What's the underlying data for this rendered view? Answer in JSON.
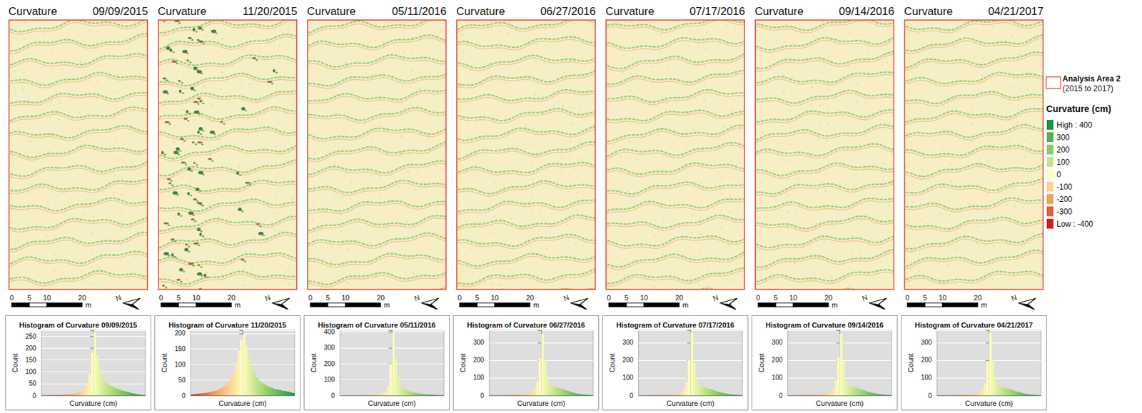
{
  "maps": [
    {
      "title": "Curvature",
      "date": "09/09/2015"
    },
    {
      "title": "Curvature",
      "date": "11/20/2015"
    },
    {
      "title": "Curvature",
      "date": "05/11/2016"
    },
    {
      "title": "Curvature",
      "date": "06/27/2016"
    },
    {
      "title": "Curvature",
      "date": "07/17/2016"
    },
    {
      "title": "Curvature",
      "date": "09/14/2016"
    },
    {
      "title": "Curvature",
      "date": "04/21/2017"
    }
  ],
  "scale_bar": {
    "ticks": [
      0,
      5,
      10,
      20
    ],
    "unit": "m",
    "north": "N"
  },
  "legend": {
    "box_label": "Analysis Area 2",
    "box_sublabel": "(2015 to 2017)"
  },
  "colorbar": {
    "title": "Curvature  (cm)",
    "range": [
      -400,
      400
    ],
    "ticks": [
      {
        "value": 400,
        "label": "High : 400"
      },
      300,
      200,
      100,
      0,
      -100,
      -200,
      -300,
      {
        "value": -400,
        "label": "Low : -400"
      }
    ],
    "colors": [
      "#1a9641",
      "#52b151",
      "#8acc62",
      "#c4e687",
      "#ffffc0",
      "#fdd28a",
      "#f99e59",
      "#e85b3a",
      "#d7191c"
    ]
  },
  "chart_data": [
    {
      "type": "histogram",
      "title": "Histogram of Curvature 09/09/2015",
      "x_label": "Curvature (cm)",
      "y_label": "Count",
      "bins": [
        -400,
        -380,
        -360,
        -340,
        -320,
        -300,
        -280,
        -260,
        -240,
        -220,
        -200,
        -180,
        -160,
        -140,
        -120,
        -100,
        -80,
        -60,
        -40,
        -20,
        0,
        20,
        40,
        60,
        80,
        100,
        120,
        140,
        160,
        180,
        200,
        220,
        240,
        260,
        280,
        300,
        320,
        340,
        360,
        380,
        400
      ],
      "values": [
        0,
        0,
        0,
        1,
        1,
        1,
        2,
        2,
        3,
        4,
        5,
        6,
        8,
        10,
        13,
        18,
        27,
        45,
        90,
        180,
        265,
        170,
        110,
        80,
        62,
        50,
        42,
        36,
        31,
        27,
        23,
        20,
        17,
        14,
        11,
        8,
        6,
        4,
        2,
        1
      ],
      "xlim": [
        -400,
        400
      ],
      "ylim": [
        0,
        275
      ],
      "yticks": [
        0,
        50,
        100,
        150,
        200,
        250
      ],
      "grid": true,
      "tick_labels": "y"
    },
    {
      "type": "histogram",
      "title": "Histogram of Curvature 11/20/2015",
      "x_label": "Curvature (cm)",
      "y_label": "Count",
      "bins": [
        -400,
        -380,
        -360,
        -340,
        -320,
        -300,
        -280,
        -260,
        -240,
        -220,
        -200,
        -180,
        -160,
        -140,
        -120,
        -100,
        -80,
        -60,
        -40,
        -20,
        0,
        20,
        40,
        60,
        80,
        100,
        120,
        140,
        160,
        180,
        200,
        220,
        240,
        260,
        280,
        300,
        320,
        340,
        360,
        380,
        400
      ],
      "values": [
        3,
        4,
        5,
        6,
        7,
        8,
        9,
        11,
        13,
        15,
        18,
        22,
        27,
        33,
        42,
        55,
        75,
        105,
        145,
        180,
        195,
        160,
        120,
        92,
        72,
        58,
        48,
        41,
        36,
        31,
        27,
        24,
        21,
        19,
        17,
        15,
        14,
        12,
        10,
        8
      ],
      "xlim": [
        -400,
        400
      ],
      "ylim": [
        0,
        210
      ],
      "yticks": [
        0,
        50,
        100,
        150,
        200
      ],
      "grid": true,
      "tick_labels": "y"
    },
    {
      "type": "histogram",
      "title": "Histogram of Curvature 05/11/2016",
      "x_label": "Curvature (cm)",
      "y_label": "Count",
      "bins": [
        -400,
        -380,
        -360,
        -340,
        -320,
        -300,
        -280,
        -260,
        -240,
        -220,
        -200,
        -180,
        -160,
        -140,
        -120,
        -100,
        -80,
        -60,
        -40,
        -20,
        0,
        20,
        40,
        60,
        80,
        100,
        120,
        140,
        160,
        180,
        200,
        220,
        240,
        260,
        280,
        300,
        320,
        340,
        360,
        380,
        400
      ],
      "values": [
        0,
        0,
        0,
        0,
        0,
        0,
        0,
        1,
        1,
        1,
        2,
        2,
        3,
        4,
        6,
        9,
        14,
        25,
        60,
        200,
        395,
        230,
        110,
        65,
        45,
        34,
        27,
        22,
        18,
        15,
        12,
        10,
        8,
        6,
        5,
        4,
        3,
        2,
        1,
        1
      ],
      "xlim": [
        -400,
        400
      ],
      "ylim": [
        0,
        410
      ],
      "yticks": [
        0,
        100,
        200,
        300,
        400
      ],
      "grid": true,
      "tick_labels": "y"
    },
    {
      "type": "histogram",
      "title": "Histogram of Curvature 06/27/2016",
      "x_label": "Curvature (cm)",
      "y_label": "Count",
      "bins": [
        -400,
        -380,
        -360,
        -340,
        -320,
        -300,
        -280,
        -260,
        -240,
        -220,
        -200,
        -180,
        -160,
        -140,
        -120,
        -100,
        -80,
        -60,
        -40,
        -20,
        0,
        20,
        40,
        60,
        80,
        100,
        120,
        140,
        160,
        180,
        200,
        220,
        240,
        260,
        280,
        300,
        320,
        340,
        360,
        380,
        400
      ],
      "values": [
        0,
        0,
        0,
        0,
        0,
        1,
        1,
        1,
        2,
        2,
        3,
        4,
        5,
        7,
        10,
        14,
        20,
        35,
        80,
        210,
        350,
        200,
        95,
        62,
        52,
        48,
        44,
        40,
        35,
        30,
        25,
        20,
        16,
        12,
        9,
        7,
        5,
        3,
        2,
        1
      ],
      "xlim": [
        -400,
        400
      ],
      "ylim": [
        0,
        370
      ],
      "yticks": [
        0,
        100,
        200,
        300
      ],
      "grid": true,
      "tick_labels": "y"
    },
    {
      "type": "histogram",
      "title": "Histogram of Curvature 07/17/2016",
      "x_label": "Curvature (cm)",
      "y_label": "Count",
      "bins": [
        -400,
        -380,
        -360,
        -340,
        -320,
        -300,
        -280,
        -260,
        -240,
        -220,
        -200,
        -180,
        -160,
        -140,
        -120,
        -100,
        -80,
        -60,
        -40,
        -20,
        0,
        20,
        40,
        60,
        80,
        100,
        120,
        140,
        160,
        180,
        200,
        220,
        240,
        260,
        280,
        300,
        320,
        340,
        360,
        380,
        400
      ],
      "values": [
        0,
        0,
        0,
        0,
        0,
        1,
        1,
        1,
        2,
        2,
        3,
        4,
        5,
        7,
        9,
        13,
        19,
        32,
        75,
        200,
        360,
        190,
        90,
        60,
        50,
        45,
        41,
        37,
        32,
        27,
        22,
        18,
        14,
        11,
        8,
        6,
        4,
        3,
        2,
        1
      ],
      "xlim": [
        -400,
        400
      ],
      "ylim": [
        0,
        370
      ],
      "yticks": [
        0,
        100,
        200,
        300
      ],
      "grid": true,
      "tick_labels": "y"
    },
    {
      "type": "histogram",
      "title": "Histogram of Curvature 09/14/2016",
      "x_label": "Curvature (cm)",
      "y_label": "Count",
      "bins": [
        -400,
        -380,
        -360,
        -340,
        -320,
        -300,
        -280,
        -260,
        -240,
        -220,
        -200,
        -180,
        -160,
        -140,
        -120,
        -100,
        -80,
        -60,
        -40,
        -20,
        0,
        20,
        40,
        60,
        80,
        100,
        120,
        140,
        160,
        180,
        200,
        220,
        240,
        260,
        280,
        300,
        320,
        340,
        360,
        380,
        400
      ],
      "values": [
        0,
        0,
        0,
        0,
        1,
        1,
        1,
        2,
        2,
        3,
        3,
        4,
        6,
        8,
        11,
        15,
        22,
        38,
        85,
        215,
        350,
        195,
        95,
        62,
        52,
        47,
        43,
        38,
        33,
        28,
        23,
        19,
        15,
        12,
        9,
        7,
        5,
        3,
        2,
        1
      ],
      "xlim": [
        -400,
        400
      ],
      "ylim": [
        0,
        370
      ],
      "yticks": [
        0,
        100,
        200,
        300
      ],
      "grid": true,
      "tick_labels": "y"
    },
    {
      "type": "histogram",
      "title": "Histogram of Curvature 04/21/2017",
      "x_label": "Curvature (cm)",
      "y_label": "Count",
      "bins": [
        -400,
        -380,
        -360,
        -340,
        -320,
        -300,
        -280,
        -260,
        -240,
        -220,
        -200,
        -180,
        -160,
        -140,
        -120,
        -100,
        -80,
        -60,
        -40,
        -20,
        0,
        20,
        40,
        60,
        80,
        100,
        120,
        140,
        160,
        180,
        200,
        220,
        240,
        260,
        280,
        300,
        320,
        340,
        360,
        380,
        400
      ],
      "values": [
        0,
        0,
        0,
        0,
        0,
        1,
        1,
        1,
        2,
        2,
        3,
        4,
        5,
        7,
        9,
        13,
        18,
        30,
        70,
        190,
        355,
        200,
        92,
        58,
        48,
        45,
        42,
        38,
        33,
        28,
        23,
        19,
        15,
        11,
        8,
        6,
        4,
        3,
        2,
        1
      ],
      "xlim": [
        -400,
        400
      ],
      "ylim": [
        0,
        370
      ],
      "yticks": [
        0,
        100,
        200,
        300
      ],
      "grid": true,
      "tick_labels": "y"
    }
  ]
}
